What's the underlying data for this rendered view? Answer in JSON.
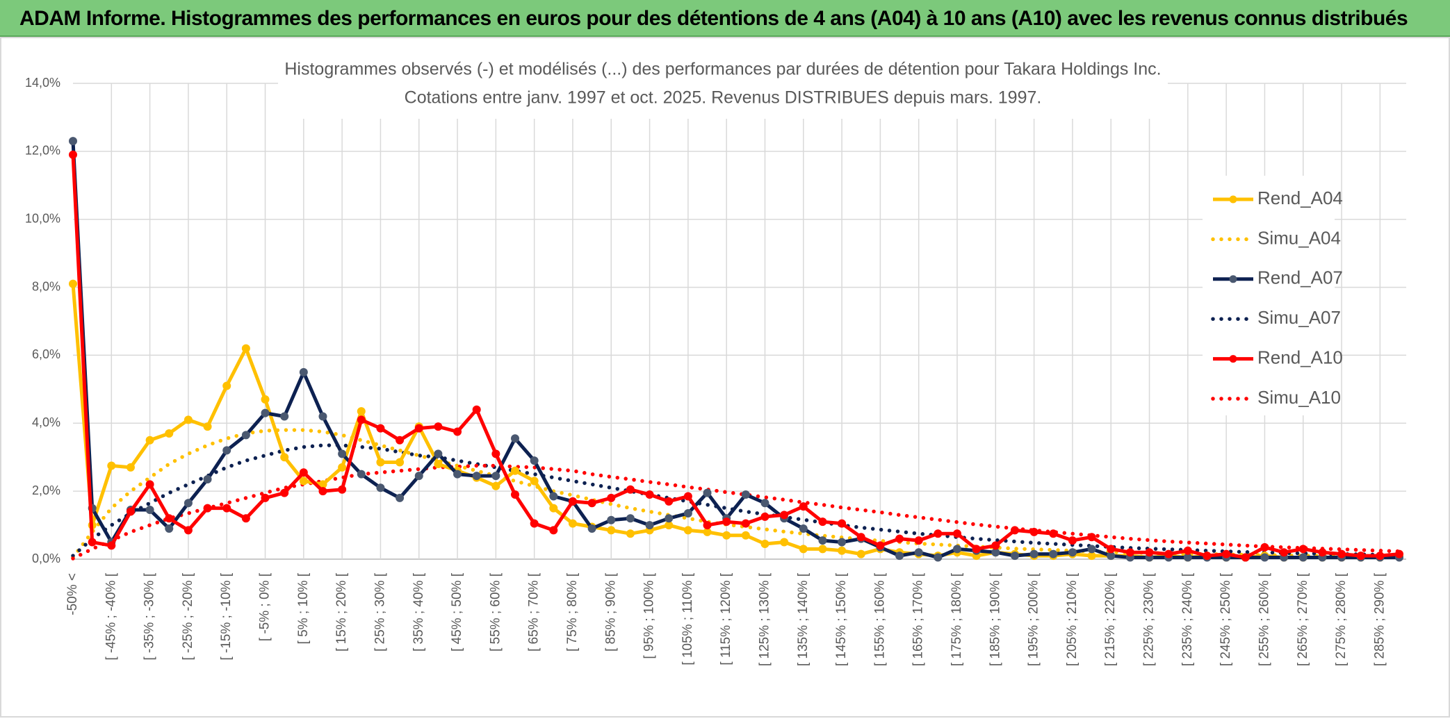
{
  "header": {
    "title": "ADAM Informe. Histogrammes des performances en euros pour des détentions de 4 ans (A04) à 10 ans (A10) avec les revenus connus distribués"
  },
  "chart_data": {
    "type": "line",
    "title": "Histogrammes observés (-) et modélisés (...) des performances par durées de détention pour Takara Holdings Inc.",
    "subtitle": "Cotations entre janv. 1997 et oct. 2025. Revenus DISTRIBUES depuis mars. 1997.",
    "categories": [
      "-50% <",
      null,
      "[ -45% ; -40% [",
      null,
      "[ -35% ; -30% [",
      null,
      "[ -25% ; -20% [",
      null,
      "[ -15% ; -10% [",
      null,
      "[ -5% ; 0% [",
      null,
      "[ 5% ; 10% [",
      null,
      "[ 15% ; 20% [",
      null,
      "[ 25% ; 30% [",
      null,
      "[ 35% ; 40% [",
      null,
      "[ 45% ; 50% [",
      null,
      "[ 55% ; 60% [",
      null,
      "[ 65% ; 70% [",
      null,
      "[ 75% ; 80% [",
      null,
      "[ 85% ; 90% [",
      null,
      "[ 95% ; 100% [",
      null,
      "[ 105% ; 110% [",
      null,
      "[ 115% ; 120% [",
      null,
      "[ 125% ; 130% [",
      null,
      "[ 135% ; 140% [",
      null,
      "[ 145% ; 150% [",
      null,
      "[ 155% ; 160% [",
      null,
      "[ 165% ; 170% [",
      null,
      "[ 175% ; 180% [",
      null,
      "[ 185% ; 190% [",
      null,
      "[ 195% ; 200% [",
      null,
      "[ 205% ; 210% [",
      null,
      "[ 215% ; 220% [",
      null,
      "[ 225% ; 230% [",
      null,
      "[ 235% ; 240% [",
      null,
      "[ 245% ; 250% [",
      null,
      "[ 255% ; 260% [",
      null,
      "[ 265% ; 270% [",
      null,
      "[ 275% ; 280% [",
      null,
      "[ 285% ; 290% [",
      null
    ],
    "series": [
      {
        "name": "Rend_A04",
        "color": "#ffc000",
        "marker_color": "#ffc000",
        "style": "solid",
        "marker": true,
        "values": [
          8.1,
          1.0,
          2.75,
          2.7,
          3.5,
          3.7,
          4.1,
          3.9,
          5.1,
          6.2,
          4.7,
          3.0,
          2.3,
          2.2,
          2.7,
          4.35,
          2.85,
          2.85,
          3.9,
          2.8,
          2.6,
          2.4,
          2.15,
          2.6,
          2.3,
          1.5,
          1.05,
          0.95,
          0.85,
          0.75,
          0.85,
          1.0,
          0.85,
          0.8,
          0.7,
          0.7,
          0.45,
          0.5,
          0.3,
          0.3,
          0.25,
          0.15,
          0.3,
          0.2,
          0.15,
          0.1,
          0.2,
          0.1,
          0.2,
          0.15,
          0.1,
          0.1,
          0.15,
          0.1,
          0.1,
          0.1,
          0.05,
          0.1,
          0.05,
          0.1,
          0.05,
          0.05,
          0.1,
          0.05,
          0.05,
          0.05,
          0.05,
          0.05,
          0.05,
          0.1
        ]
      },
      {
        "name": "Simu_A04",
        "color": "#ffc000",
        "style": "dotted",
        "marker": false,
        "values": [
          0.05,
          0.8,
          1.5,
          2.0,
          2.4,
          2.8,
          3.1,
          3.35,
          3.55,
          3.7,
          3.78,
          3.8,
          3.8,
          3.75,
          3.65,
          3.5,
          3.35,
          3.2,
          3.05,
          2.9,
          2.75,
          2.6,
          2.45,
          2.3,
          2.15,
          2.0,
          1.88,
          1.75,
          1.62,
          1.5,
          1.4,
          1.3,
          1.2,
          1.1,
          1.02,
          0.95,
          0.88,
          0.81,
          0.75,
          0.69,
          0.64,
          0.59,
          0.54,
          0.5,
          0.46,
          0.43,
          0.4,
          0.37,
          0.34,
          0.31,
          0.29,
          0.27,
          0.25,
          0.23,
          0.21,
          0.2,
          0.18,
          0.17,
          0.16,
          0.15,
          0.14,
          0.13,
          0.12,
          0.11,
          0.1,
          0.1,
          0.09,
          0.08,
          0.08,
          0.07
        ]
      },
      {
        "name": "Rend_A07",
        "color": "#0d2151",
        "marker_color": "#4a5870",
        "style": "solid",
        "marker": true,
        "values": [
          12.3,
          1.5,
          0.5,
          1.45,
          1.45,
          0.9,
          1.65,
          2.35,
          3.2,
          3.65,
          4.3,
          4.2,
          5.5,
          4.2,
          3.1,
          2.5,
          2.1,
          1.8,
          2.45,
          3.1,
          2.5,
          2.45,
          2.45,
          3.55,
          2.9,
          1.85,
          1.7,
          0.9,
          1.15,
          1.2,
          1.0,
          1.2,
          1.35,
          1.95,
          1.2,
          1.9,
          1.65,
          1.2,
          0.9,
          0.55,
          0.5,
          0.6,
          0.35,
          0.1,
          0.2,
          0.05,
          0.3,
          0.25,
          0.2,
          0.1,
          0.15,
          0.15,
          0.2,
          0.3,
          0.1,
          0.05,
          0.05,
          0.05,
          0.05,
          0.05,
          0.05,
          0.05,
          0.05,
          0.05,
          0.05,
          0.05,
          0.05,
          0.05,
          0.05,
          0.05
        ]
      },
      {
        "name": "Simu_A07",
        "color": "#0d2151",
        "style": "dotted",
        "marker": false,
        "values": [
          0.1,
          0.6,
          1.0,
          1.35,
          1.65,
          1.95,
          2.2,
          2.45,
          2.7,
          2.9,
          3.05,
          3.2,
          3.3,
          3.35,
          3.35,
          3.3,
          3.25,
          3.15,
          3.05,
          3.0,
          2.9,
          2.8,
          2.7,
          2.6,
          2.5,
          2.4,
          2.3,
          2.2,
          2.1,
          2.0,
          1.9,
          1.8,
          1.7,
          1.6,
          1.5,
          1.4,
          1.32,
          1.24,
          1.16,
          1.08,
          1.0,
          0.93,
          0.87,
          0.81,
          0.75,
          0.7,
          0.65,
          0.6,
          0.56,
          0.52,
          0.48,
          0.45,
          0.42,
          0.39,
          0.36,
          0.33,
          0.31,
          0.29,
          0.27,
          0.25,
          0.23,
          0.21,
          0.2,
          0.18,
          0.17,
          0.16,
          0.15,
          0.14,
          0.13,
          0.12
        ]
      },
      {
        "name": "Rend_A10",
        "color": "#ff0000",
        "marker_color": "#ff0000",
        "style": "solid",
        "marker": true,
        "values": [
          11.9,
          0.5,
          0.4,
          1.4,
          2.2,
          1.2,
          0.85,
          1.5,
          1.5,
          1.2,
          1.8,
          1.95,
          2.55,
          2.0,
          2.05,
          4.1,
          3.85,
          3.5,
          3.85,
          3.9,
          3.75,
          4.4,
          3.1,
          1.9,
          1.05,
          0.85,
          1.7,
          1.65,
          1.8,
          2.05,
          1.9,
          1.7,
          1.85,
          1.0,
          1.1,
          1.05,
          1.25,
          1.3,
          1.55,
          1.1,
          1.05,
          0.65,
          0.4,
          0.6,
          0.55,
          0.75,
          0.75,
          0.3,
          0.4,
          0.85,
          0.8,
          0.75,
          0.55,
          0.65,
          0.3,
          0.2,
          0.2,
          0.15,
          0.25,
          0.1,
          0.15,
          0.05,
          0.35,
          0.2,
          0.3,
          0.2,
          0.15,
          0.1,
          0.1,
          0.15
        ]
      },
      {
        "name": "Simu_A10",
        "color": "#ff0000",
        "style": "dotted",
        "marker": false,
        "values": [
          0.02,
          0.3,
          0.55,
          0.8,
          1.0,
          1.2,
          1.35,
          1.5,
          1.65,
          1.8,
          1.95,
          2.1,
          2.2,
          2.3,
          2.4,
          2.5,
          2.55,
          2.6,
          2.65,
          2.7,
          2.72,
          2.75,
          2.75,
          2.72,
          2.7,
          2.65,
          2.6,
          2.5,
          2.42,
          2.35,
          2.27,
          2.2,
          2.12,
          2.05,
          1.97,
          1.9,
          1.82,
          1.75,
          1.67,
          1.6,
          1.52,
          1.45,
          1.38,
          1.3,
          1.23,
          1.16,
          1.09,
          1.02,
          0.96,
          0.9,
          0.85,
          0.8,
          0.75,
          0.7,
          0.65,
          0.6,
          0.56,
          0.52,
          0.49,
          0.46,
          0.43,
          0.4,
          0.37,
          0.35,
          0.33,
          0.31,
          0.29,
          0.27,
          0.25,
          0.23
        ]
      }
    ],
    "ylim": [
      0,
      14
    ],
    "yticks": [
      {
        "value": 0,
        "label": "0,0%"
      },
      {
        "value": 2,
        "label": "2,0%"
      },
      {
        "value": 4,
        "label": "4,0%"
      },
      {
        "value": 6,
        "label": "6,0%"
      },
      {
        "value": 8,
        "label": "8,0%"
      },
      {
        "value": 10,
        "label": "10,0%"
      },
      {
        "value": 12,
        "label": "12,0%"
      },
      {
        "value": 14,
        "label": "14,0%"
      }
    ],
    "grid": true,
    "legend": "right"
  }
}
